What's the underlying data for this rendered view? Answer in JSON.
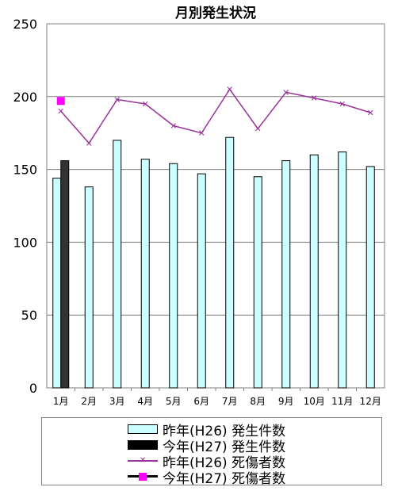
{
  "chart_data": {
    "type": "bar",
    "title": "月別発生状況",
    "categories": [
      "1月",
      "2月",
      "3月",
      "4月",
      "5月",
      "6月",
      "7月",
      "8月",
      "9月",
      "10月",
      "11月",
      "12月"
    ],
    "ylim": [
      0,
      250
    ],
    "yticks": [
      0,
      50,
      100,
      150,
      200,
      250
    ],
    "grid": true,
    "legend_placement": "bottom",
    "series": [
      {
        "name": "昨年(H26) 発生件数",
        "kind": "bar",
        "color": "#CCFFFF",
        "values": [
          144,
          138,
          170,
          157,
          154,
          147,
          172,
          145,
          156,
          160,
          162,
          152
        ]
      },
      {
        "name": "今年(H27) 発生件数",
        "kind": "bar",
        "color": "#333333",
        "values": [
          156,
          null,
          null,
          null,
          null,
          null,
          null,
          null,
          null,
          null,
          null,
          null
        ]
      },
      {
        "name": "昨年(H26) 死傷者数",
        "kind": "line",
        "color": "#993399",
        "marker": "x",
        "values": [
          190,
          168,
          198,
          195,
          180,
          175,
          205,
          178,
          203,
          199,
          195,
          189
        ]
      },
      {
        "name": "今年(H27) 死傷者数",
        "kind": "line",
        "color": "#FF00FF",
        "marker": "square",
        "values": [
          197,
          null,
          null,
          null,
          null,
          null,
          null,
          null,
          null,
          null,
          null,
          null
        ]
      }
    ]
  }
}
